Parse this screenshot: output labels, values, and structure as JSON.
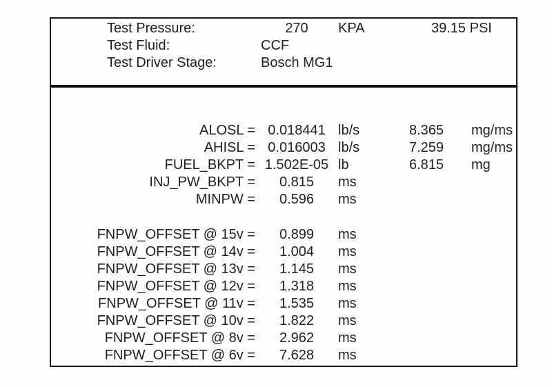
{
  "report": {
    "header": [
      {
        "label": "Test Pressure:",
        "value": "270",
        "unit": "KPA",
        "extra": "39.15 PSI"
      },
      {
        "label": "Test Fluid:",
        "value": "CCF",
        "unit": "",
        "extra": ""
      },
      {
        "label": "Test Driver Stage:",
        "value": "Bosch MG1",
        "unit": "",
        "extra": ""
      }
    ],
    "parameters": [
      {
        "label": "ALOSL =",
        "value": "0.018441",
        "unit": "lb/s",
        "value2": "8.365",
        "unit2": "mg/ms"
      },
      {
        "label": "AHISL =",
        "value": "0.016003",
        "unit": "lb/s",
        "value2": "7.259",
        "unit2": "mg/ms"
      },
      {
        "label": "FUEL_BKPT =",
        "value": "1.502E-05",
        "unit": "lb",
        "value2": "6.815",
        "unit2": "mg"
      },
      {
        "label": "INJ_PW_BKPT =",
        "value": "0.815",
        "unit": "ms",
        "value2": "",
        "unit2": ""
      },
      {
        "label": "MINPW =",
        "value": "0.596",
        "unit": "ms",
        "value2": "",
        "unit2": ""
      }
    ],
    "offsets": [
      {
        "label": "FNPW_OFFSET @ 15v =",
        "value": "0.899",
        "unit": "ms"
      },
      {
        "label": "FNPW_OFFSET @ 14v =",
        "value": "1.004",
        "unit": "ms"
      },
      {
        "label": "FNPW_OFFSET @ 13v =",
        "value": "1.145",
        "unit": "ms"
      },
      {
        "label": "FNPW_OFFSET @ 12v =",
        "value": "1.318",
        "unit": "ms"
      },
      {
        "label": "FNPW_OFFSET @ 11v =",
        "value": "1.535",
        "unit": "ms"
      },
      {
        "label": "FNPW_OFFSET @ 10v =",
        "value": "1.822",
        "unit": "ms"
      },
      {
        "label": "FNPW_OFFSET @ 8v =",
        "value": "2.962",
        "unit": "ms"
      },
      {
        "label": "FNPW_OFFSET @ 6v =",
        "value": "7.628",
        "unit": "ms"
      }
    ],
    "colors": {
      "text": "#212121",
      "frame_border": "#1a1a1a",
      "divider": "#111111",
      "background": "#ffffff"
    }
  }
}
